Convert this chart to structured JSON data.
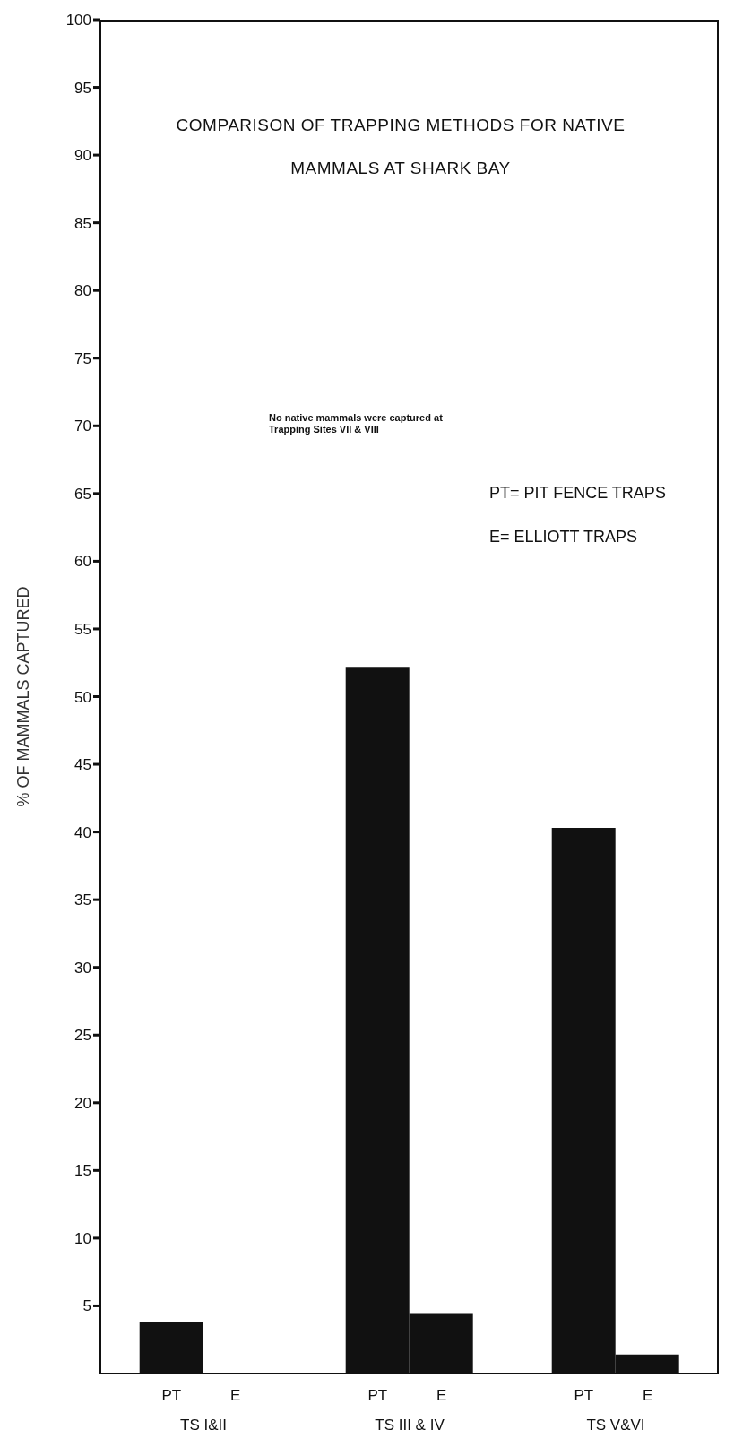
{
  "chart_data": {
    "type": "bar",
    "title": "COMPARISON  OF  TRAPPING  METHODS  FOR  NATIVE MAMMALS  AT  SHARK  BAY",
    "ylabel": "% OF MAMMALS CAPTURED",
    "categories": [
      "TS I&II",
      "TS III & IV",
      "TS V&VI"
    ],
    "series": [
      {
        "name": "PT",
        "color": "#111111",
        "values": [
          3.8,
          52.2,
          40.3
        ]
      },
      {
        "name": "E",
        "color": "#111111",
        "values": [
          0,
          4.4,
          1.4
        ]
      }
    ],
    "ylim": [
      0,
      100
    ],
    "yticks": [
      5,
      10,
      15,
      20,
      25,
      30,
      35,
      40,
      45,
      50,
      55,
      60,
      65,
      70,
      75,
      80,
      85,
      90,
      95,
      100
    ],
    "grid": false,
    "legend": false,
    "annotations": [
      "No native mammals were captured at Trapping  Sites VII & VIII",
      "PT= PIT  FENCE TRAPS",
      "E= ELLIOTT TRAPS"
    ]
  }
}
